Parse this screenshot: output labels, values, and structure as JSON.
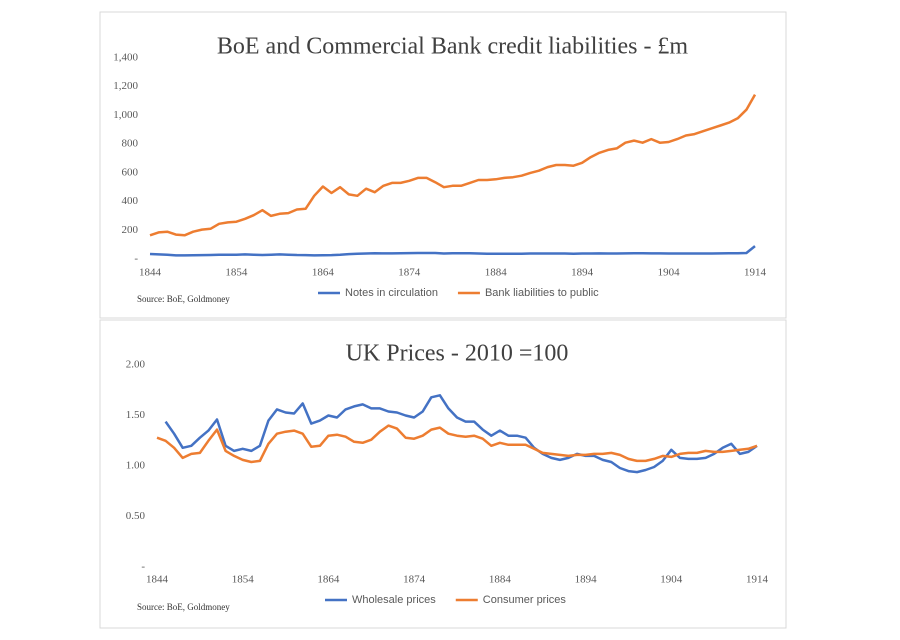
{
  "chart_data": [
    {
      "type": "line",
      "title": "BoE and Commercial Bank credit liabilities - £m",
      "source": "Source: BoE, Goldmoney",
      "x": [
        1844,
        1845,
        1846,
        1847,
        1848,
        1849,
        1850,
        1851,
        1852,
        1853,
        1854,
        1855,
        1856,
        1857,
        1858,
        1859,
        1860,
        1861,
        1862,
        1863,
        1864,
        1865,
        1866,
        1867,
        1868,
        1869,
        1870,
        1871,
        1872,
        1873,
        1874,
        1875,
        1876,
        1877,
        1878,
        1879,
        1880,
        1881,
        1882,
        1883,
        1884,
        1885,
        1886,
        1887,
        1888,
        1889,
        1890,
        1891,
        1892,
        1893,
        1894,
        1895,
        1896,
        1897,
        1898,
        1899,
        1900,
        1901,
        1902,
        1903,
        1904,
        1905,
        1906,
        1907,
        1908,
        1909,
        1910,
        1911,
        1912,
        1913,
        1914
      ],
      "series": [
        {
          "name": "Notes in circulation",
          "color": "#4472c4",
          "values": [
            35,
            32,
            30,
            25,
            25,
            26,
            27,
            28,
            29,
            30,
            30,
            32,
            30,
            28,
            30,
            32,
            30,
            28,
            27,
            25,
            26,
            27,
            30,
            34,
            36,
            38,
            40,
            39,
            39,
            40,
            41,
            42,
            42,
            42,
            38,
            40,
            40,
            40,
            38,
            37,
            36,
            37,
            37,
            37,
            38,
            38,
            38,
            38,
            38,
            37,
            38,
            38,
            39,
            38,
            38,
            39,
            40,
            40,
            39,
            39,
            38,
            38,
            38,
            38,
            38,
            38,
            39,
            40,
            40,
            42,
            90
          ]
        },
        {
          "name": "Bank liabilities to public",
          "color": "#ed7d31",
          "values": [
            165,
            185,
            190,
            170,
            165,
            190,
            205,
            210,
            245,
            255,
            260,
            280,
            305,
            340,
            300,
            315,
            320,
            345,
            350,
            440,
            505,
            460,
            500,
            450,
            440,
            490,
            465,
            510,
            530,
            530,
            545,
            565,
            565,
            535,
            500,
            510,
            510,
            530,
            550,
            550,
            555,
            565,
            570,
            580,
            600,
            615,
            640,
            655,
            655,
            650,
            670,
            710,
            740,
            760,
            770,
            810,
            825,
            810,
            835,
            810,
            815,
            835,
            860,
            870,
            890,
            910,
            930,
            950,
            980,
            1040,
            1145
          ]
        }
      ],
      "xlim": [
        1844,
        1914
      ],
      "xticks": [
        1844,
        1854,
        1864,
        1874,
        1884,
        1894,
        1904,
        1914
      ],
      "ylim": [
        0,
        1400
      ],
      "yticks": [
        {
          "value": 0,
          "label": "-"
        },
        200,
        400,
        600,
        800,
        {
          "value": 1000,
          "label": "1,000"
        },
        {
          "value": 1200,
          "label": "1,200"
        },
        {
          "value": 1400,
          "label": "1,400"
        }
      ],
      "grid": false,
      "legend": "bottom"
    },
    {
      "type": "line",
      "title": "UK Prices - 2010 =100",
      "source": "Source: BoE, Goldmoney",
      "x": [
        1844,
        1845,
        1846,
        1847,
        1848,
        1849,
        1850,
        1851,
        1852,
        1853,
        1854,
        1855,
        1856,
        1857,
        1858,
        1859,
        1860,
        1861,
        1862,
        1863,
        1864,
        1865,
        1866,
        1867,
        1868,
        1869,
        1870,
        1871,
        1872,
        1873,
        1874,
        1875,
        1876,
        1877,
        1878,
        1879,
        1880,
        1881,
        1882,
        1883,
        1884,
        1885,
        1886,
        1887,
        1888,
        1889,
        1890,
        1891,
        1892,
        1893,
        1894,
        1895,
        1896,
        1897,
        1898,
        1899,
        1900,
        1901,
        1902,
        1903,
        1904,
        1905,
        1906,
        1907,
        1908,
        1909,
        1910,
        1911,
        1912,
        1913,
        1914
      ],
      "series": [
        {
          "name": "Wholesale prices",
          "color": "#4472c4",
          "values": [
            null,
            1.44,
            1.32,
            1.18,
            1.2,
            1.28,
            1.35,
            1.46,
            1.2,
            1.15,
            1.17,
            1.15,
            1.2,
            1.45,
            1.56,
            1.53,
            1.52,
            1.62,
            1.42,
            1.45,
            1.5,
            1.48,
            1.56,
            1.59,
            1.61,
            1.57,
            1.57,
            1.54,
            1.53,
            1.5,
            1.48,
            1.54,
            1.68,
            1.7,
            1.57,
            1.48,
            1.44,
            1.44,
            1.36,
            1.3,
            1.35,
            1.3,
            1.3,
            1.28,
            1.18,
            1.12,
            1.08,
            1.06,
            1.08,
            1.12,
            1.1,
            1.1,
            1.06,
            1.04,
            0.98,
            0.95,
            0.94,
            0.96,
            0.99,
            1.05,
            1.16,
            1.08,
            1.07,
            1.07,
            1.08,
            1.12,
            1.18,
            1.22,
            1.12,
            1.14,
            1.2
          ]
        },
        {
          "name": "Consumer prices",
          "color": "#ed7d31",
          "values": [
            1.28,
            1.25,
            1.18,
            1.08,
            1.12,
            1.13,
            1.25,
            1.36,
            1.15,
            1.1,
            1.06,
            1.04,
            1.05,
            1.22,
            1.32,
            1.34,
            1.35,
            1.32,
            1.19,
            1.2,
            1.3,
            1.31,
            1.29,
            1.24,
            1.23,
            1.26,
            1.34,
            1.4,
            1.37,
            1.28,
            1.27,
            1.3,
            1.36,
            1.38,
            1.32,
            1.3,
            1.29,
            1.3,
            1.27,
            1.2,
            1.23,
            1.21,
            1.21,
            1.21,
            1.17,
            1.13,
            1.12,
            1.11,
            1.1,
            1.11,
            1.11,
            1.12,
            1.12,
            1.13,
            1.11,
            1.07,
            1.05,
            1.05,
            1.07,
            1.1,
            1.09,
            1.12,
            1.13,
            1.13,
            1.15,
            1.14,
            1.14,
            1.15,
            1.16,
            1.17,
            1.2
          ]
        }
      ],
      "xlim": [
        1844,
        1914
      ],
      "xticks": [
        1844,
        1854,
        1864,
        1874,
        1884,
        1894,
        1904,
        1914
      ],
      "ylim": [
        0,
        2
      ],
      "yticks": [
        {
          "value": 0,
          "label": "-"
        },
        {
          "value": 0.5,
          "label": "0.50"
        },
        {
          "value": 1,
          "label": "1.00"
        },
        {
          "value": 1.5,
          "label": "1.50"
        },
        {
          "value": 2,
          "label": "2.00"
        }
      ],
      "grid": false,
      "legend": "bottom"
    }
  ]
}
